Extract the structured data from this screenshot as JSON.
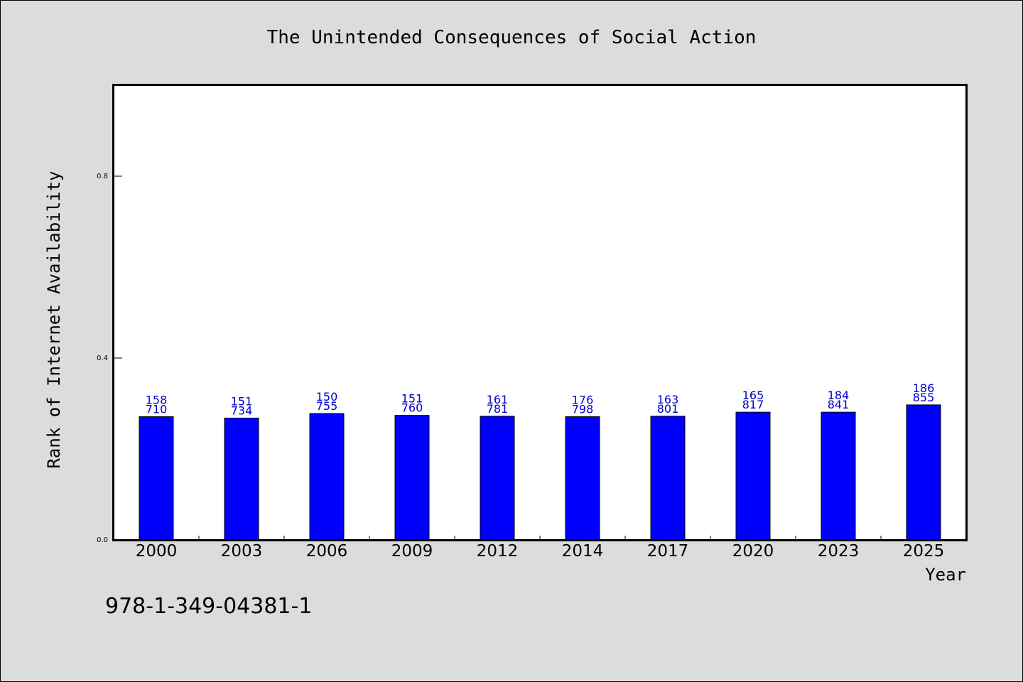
{
  "chart_data": {
    "type": "bar",
    "title": "The Unintended Consequences of Social Action",
    "xlabel": "Year",
    "ylabel": "Rank of Internet Availability",
    "ylim": [
      0,
      1.0
    ],
    "yticks": [
      "0.0",
      "0.4",
      "0.8"
    ],
    "ytick_values": [
      0.0,
      0.4,
      0.8
    ],
    "categories": [
      "2000",
      "2003",
      "2006",
      "2009",
      "2012",
      "2014",
      "2017",
      "2020",
      "2023",
      "2025"
    ],
    "values": [
      0.271,
      0.268,
      0.278,
      0.274,
      0.272,
      0.271,
      0.272,
      0.281,
      0.281,
      0.297
    ],
    "bar_labels": [
      [
        "158",
        "710"
      ],
      [
        "151",
        "734"
      ],
      [
        "150",
        "755"
      ],
      [
        "151",
        "760"
      ],
      [
        "161",
        "781"
      ],
      [
        "176",
        "798"
      ],
      [
        "163",
        "801"
      ],
      [
        "165",
        "817"
      ],
      [
        "184",
        "841"
      ],
      [
        "186",
        "855"
      ]
    ],
    "bar_color": "#0000ff",
    "label_color": "#0000cc",
    "grid": false
  },
  "footer": {
    "isbn": "978-1-349-04381-1"
  }
}
